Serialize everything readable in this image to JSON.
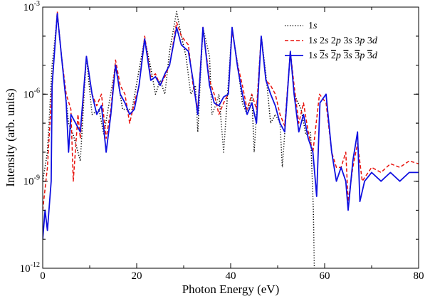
{
  "chart_data": {
    "type": "line",
    "title": "",
    "xlabel": "Photon Energy (eV)",
    "ylabel": "Intensity (arb. units)",
    "xlim": [
      0,
      80
    ],
    "ylim": [
      1e-12,
      0.001
    ],
    "yscale": "log",
    "x_ticks": [
      0,
      20,
      40,
      60,
      80
    ],
    "x_tick_labels": [
      "0",
      "20",
      "40",
      "60",
      "80"
    ],
    "y_ticks": [
      1e-12,
      1e-09,
      1e-06,
      0.001
    ],
    "y_tick_labels": [
      {
        "base": "10",
        "exp": "-12"
      },
      {
        "base": "10",
        "exp": "-9"
      },
      {
        "base": "10",
        "exp": "-6"
      },
      {
        "base": "10",
        "exp": "-3"
      }
    ],
    "grid": false,
    "legend_position": "top-right",
    "harmonic_spacing_eV": 6.2,
    "harmonic_peaks": [
      {
        "x": 3.1,
        "y": 0.0005
      },
      {
        "x": 9.3,
        "y": 2e-05
      },
      {
        "x": 15.5,
        "y": 1e-05
      },
      {
        "x": 21.7,
        "y": 8e-05
      },
      {
        "x": 27.9,
        "y": 0.0002
      },
      {
        "x": 34.1,
        "y": 0.0002
      },
      {
        "x": 40.3,
        "y": 0.0002
      },
      {
        "x": 46.5,
        "y": 0.00012
      },
      {
        "x": 52.7,
        "y": 3e-05
      },
      {
        "x": 58.9,
        "y": 1e-06
      }
    ],
    "series": [
      {
        "name": "1s",
        "color": "#000000",
        "dash": "dotted",
        "points": [
          [
            0,
            1e-09
          ],
          [
            1,
            1e-08
          ],
          [
            2,
            1e-05
          ],
          [
            3.1,
            0.0005
          ],
          [
            4,
            2e-05
          ],
          [
            5.5,
            1e-07
          ],
          [
            6.5,
            4e-08
          ],
          [
            8,
            5e-09
          ],
          [
            9.3,
            2e-05
          ],
          [
            10.5,
            2e-07
          ],
          [
            12,
            3e-07
          ],
          [
            13,
            4e-08
          ],
          [
            15.5,
            1e-05
          ],
          [
            17,
            3e-07
          ],
          [
            19,
            3e-07
          ],
          [
            21.7,
            8e-05
          ],
          [
            23,
            8e-06
          ],
          [
            24,
            1e-06
          ],
          [
            25,
            3e-06
          ],
          [
            26,
            1e-06
          ],
          [
            27,
            3e-05
          ],
          [
            28.5,
            0.0007
          ],
          [
            29.5,
            0.0001
          ],
          [
            30.5,
            2e-05
          ],
          [
            31.5,
            1e-06
          ],
          [
            32.5,
            2e-06
          ],
          [
            33,
            5e-08
          ],
          [
            34.1,
            0.0002
          ],
          [
            35.5,
            2e-05
          ],
          [
            36,
            2e-07
          ],
          [
            37,
            5e-07
          ],
          [
            37.5,
            1e-06
          ],
          [
            38.5,
            1e-08
          ],
          [
            40.3,
            0.0002
          ],
          [
            41.5,
            1e-05
          ],
          [
            42.5,
            5e-07
          ],
          [
            43.5,
            2e-07
          ],
          [
            44.5,
            1e-06
          ],
          [
            45,
            1e-08
          ],
          [
            46.5,
            0.0001
          ],
          [
            47.5,
            5e-06
          ],
          [
            48.5,
            1e-07
          ],
          [
            49.5,
            2e-07
          ],
          [
            50.5,
            1e-07
          ],
          [
            51,
            3e-09
          ],
          [
            52.7,
            3e-05
          ],
          [
            53.5,
            1e-06
          ],
          [
            55,
            3e-07
          ],
          [
            56,
            4e-08
          ],
          [
            57,
            5e-08
          ],
          [
            57.6,
            1e-10
          ],
          [
            57.8,
            1e-12
          ]
        ]
      },
      {
        "name": "1s 2s 2p 3s 3p 3d",
        "color": "#e8120c",
        "dash": "dashed",
        "points": [
          [
            0,
            1e-10
          ],
          [
            1,
            3e-09
          ],
          [
            2,
            2e-06
          ],
          [
            3.1,
            0.0007
          ],
          [
            4,
            2e-05
          ],
          [
            5,
            1e-06
          ],
          [
            6,
            3e-07
          ],
          [
            6.5,
            1e-09
          ],
          [
            7.5,
            2e-07
          ],
          [
            8,
            3e-08
          ],
          [
            9.3,
            2e-05
          ],
          [
            10.5,
            1e-06
          ],
          [
            11.5,
            4e-07
          ],
          [
            12.5,
            1e-06
          ],
          [
            13.5,
            3e-08
          ],
          [
            14.5,
            3e-07
          ],
          [
            15.5,
            1.5e-05
          ],
          [
            16.5,
            2e-06
          ],
          [
            17.5,
            1e-06
          ],
          [
            18.5,
            1e-07
          ],
          [
            19.5,
            5e-07
          ],
          [
            20.5,
            2e-06
          ],
          [
            21.7,
            0.0001
          ],
          [
            23,
            4e-06
          ],
          [
            24,
            5e-06
          ],
          [
            25,
            2e-06
          ],
          [
            26,
            4e-06
          ],
          [
            27,
            1e-05
          ],
          [
            28.5,
            0.0003
          ],
          [
            29.5,
            0.0001
          ],
          [
            31,
            5e-05
          ],
          [
            32,
            2e-06
          ],
          [
            33,
            3e-07
          ],
          [
            34.1,
            0.0002
          ],
          [
            35.5,
            3e-06
          ],
          [
            36.5,
            1e-06
          ],
          [
            37.5,
            2e-07
          ],
          [
            38.5,
            5e-07
          ],
          [
            39.5,
            1e-06
          ],
          [
            40.3,
            0.00016
          ],
          [
            41.5,
            1e-05
          ],
          [
            42.5,
            2e-06
          ],
          [
            43.5,
            3e-07
          ],
          [
            44.5,
            1e-06
          ],
          [
            45.5,
            3e-07
          ],
          [
            46.5,
            0.0001
          ],
          [
            47.5,
            3e-06
          ],
          [
            48.5,
            2e-06
          ],
          [
            49.5,
            1e-06
          ],
          [
            50.5,
            2e-07
          ],
          [
            51.5,
            8e-08
          ],
          [
            52.7,
            3e-05
          ],
          [
            53.5,
            2e-06
          ],
          [
            54.5,
            1e-07
          ],
          [
            55.5,
            5e-07
          ],
          [
            56.5,
            5e-08
          ],
          [
            57.5,
            1e-08
          ],
          [
            58.9,
            1e-06
          ],
          [
            60.3,
            5e-07
          ],
          [
            61.5,
            1e-08
          ],
          [
            62.5,
            3e-09
          ],
          [
            63.5,
            3e-09
          ],
          [
            64.5,
            1e-08
          ],
          [
            65,
            2e-10
          ],
          [
            66,
            3e-09
          ],
          [
            67,
            2e-08
          ],
          [
            68,
            1e-09
          ],
          [
            70,
            3e-09
          ],
          [
            72,
            2e-09
          ],
          [
            74,
            4e-09
          ],
          [
            76,
            3e-09
          ],
          [
            78,
            5e-09
          ],
          [
            80,
            4e-09
          ]
        ]
      },
      {
        "name": "1s 2̄s 2̄p 3̄s 3̄p 3̄d",
        "color": "#1010e0",
        "dash": "solid",
        "points": [
          [
            0,
            1e-11
          ],
          [
            0.5,
            1e-10
          ],
          [
            1,
            2e-11
          ],
          [
            1.8,
            1e-09
          ],
          [
            2,
            2e-06
          ],
          [
            3.1,
            0.0006
          ],
          [
            4,
            2e-05
          ],
          [
            5,
            5e-07
          ],
          [
            5.5,
            1e-08
          ],
          [
            6,
            2e-07
          ],
          [
            7,
            1e-07
          ],
          [
            8,
            5e-08
          ],
          [
            9.3,
            2e-05
          ],
          [
            10.5,
            1e-06
          ],
          [
            11.5,
            2e-07
          ],
          [
            12.5,
            4e-07
          ],
          [
            13.5,
            1e-08
          ],
          [
            14.5,
            2e-07
          ],
          [
            15.5,
            1e-05
          ],
          [
            16.5,
            1e-06
          ],
          [
            17.5,
            5e-07
          ],
          [
            18.5,
            2e-07
          ],
          [
            19.5,
            3e-07
          ],
          [
            20.5,
            2e-06
          ],
          [
            21.7,
            8e-05
          ],
          [
            23,
            3e-06
          ],
          [
            24,
            4e-06
          ],
          [
            25,
            2e-06
          ],
          [
            26,
            5e-06
          ],
          [
            27,
            1e-05
          ],
          [
            28.5,
            0.0002
          ],
          [
            29.5,
            5e-05
          ],
          [
            31,
            3e-05
          ],
          [
            32,
            3e-06
          ],
          [
            33,
            2e-07
          ],
          [
            34.1,
            0.0002
          ],
          [
            35.5,
            2e-06
          ],
          [
            36.5,
            5e-07
          ],
          [
            37.5,
            4e-07
          ],
          [
            38.5,
            8e-07
          ],
          [
            39.5,
            1e-06
          ],
          [
            40.3,
            0.0002
          ],
          [
            41.5,
            8e-06
          ],
          [
            42.5,
            1e-06
          ],
          [
            43.5,
            2e-07
          ],
          [
            44.5,
            5e-07
          ],
          [
            45.5,
            1e-07
          ],
          [
            46.5,
            0.0001
          ],
          [
            47.5,
            3e-06
          ],
          [
            48.5,
            1e-06
          ],
          [
            49.5,
            4e-07
          ],
          [
            50.5,
            1e-07
          ],
          [
            51.5,
            5e-08
          ],
          [
            52.7,
            3e-05
          ],
          [
            53.5,
            1e-06
          ],
          [
            54.5,
            5e-08
          ],
          [
            55.5,
            2e-07
          ],
          [
            56.5,
            3e-08
          ],
          [
            57.5,
            1e-08
          ],
          [
            58.3,
            3e-10
          ],
          [
            59,
            5e-07
          ],
          [
            60.3,
            1e-06
          ],
          [
            61.5,
            1e-08
          ],
          [
            62.5,
            1e-09
          ],
          [
            63.5,
            3e-09
          ],
          [
            64.5,
            1e-09
          ],
          [
            65,
            1e-10
          ],
          [
            66,
            5e-09
          ],
          [
            67,
            5e-08
          ],
          [
            67.5,
            2e-10
          ],
          [
            68.5,
            1e-09
          ],
          [
            70,
            2e-09
          ],
          [
            72,
            1e-09
          ],
          [
            74,
            2e-09
          ],
          [
            76,
            1e-09
          ],
          [
            78,
            2e-09
          ],
          [
            80,
            2e-09
          ]
        ]
      }
    ]
  },
  "legend": {
    "items": [
      {
        "color": "#000000",
        "dash": "dotted",
        "parts": [
          {
            "t": "1"
          },
          {
            "t": "s",
            "i": true
          }
        ]
      },
      {
        "color": "#e8120c",
        "dash": "dashed",
        "parts": [
          {
            "t": "1"
          },
          {
            "t": "s ",
            "i": true
          },
          {
            "t": "2"
          },
          {
            "t": "s ",
            "i": true
          },
          {
            "t": "2"
          },
          {
            "t": "p ",
            "i": true
          },
          {
            "t": "3"
          },
          {
            "t": "s ",
            "i": true
          },
          {
            "t": "3"
          },
          {
            "t": "p ",
            "i": true
          },
          {
            "t": "3"
          },
          {
            "t": "d",
            "i": true
          }
        ]
      },
      {
        "color": "#1010e0",
        "dash": "solid",
        "parts": [
          {
            "t": "1"
          },
          {
            "t": "s ",
            "i": true
          },
          {
            "t": "2",
            "o": true
          },
          {
            "t": "s ",
            "i": true
          },
          {
            "t": "2",
            "o": true
          },
          {
            "t": "p ",
            "i": true
          },
          {
            "t": "3",
            "o": true
          },
          {
            "t": "s ",
            "i": true
          },
          {
            "t": "3",
            "o": true
          },
          {
            "t": "p ",
            "i": true
          },
          {
            "t": "3",
            "o": true
          },
          {
            "t": "d",
            "i": true
          }
        ]
      }
    ]
  }
}
